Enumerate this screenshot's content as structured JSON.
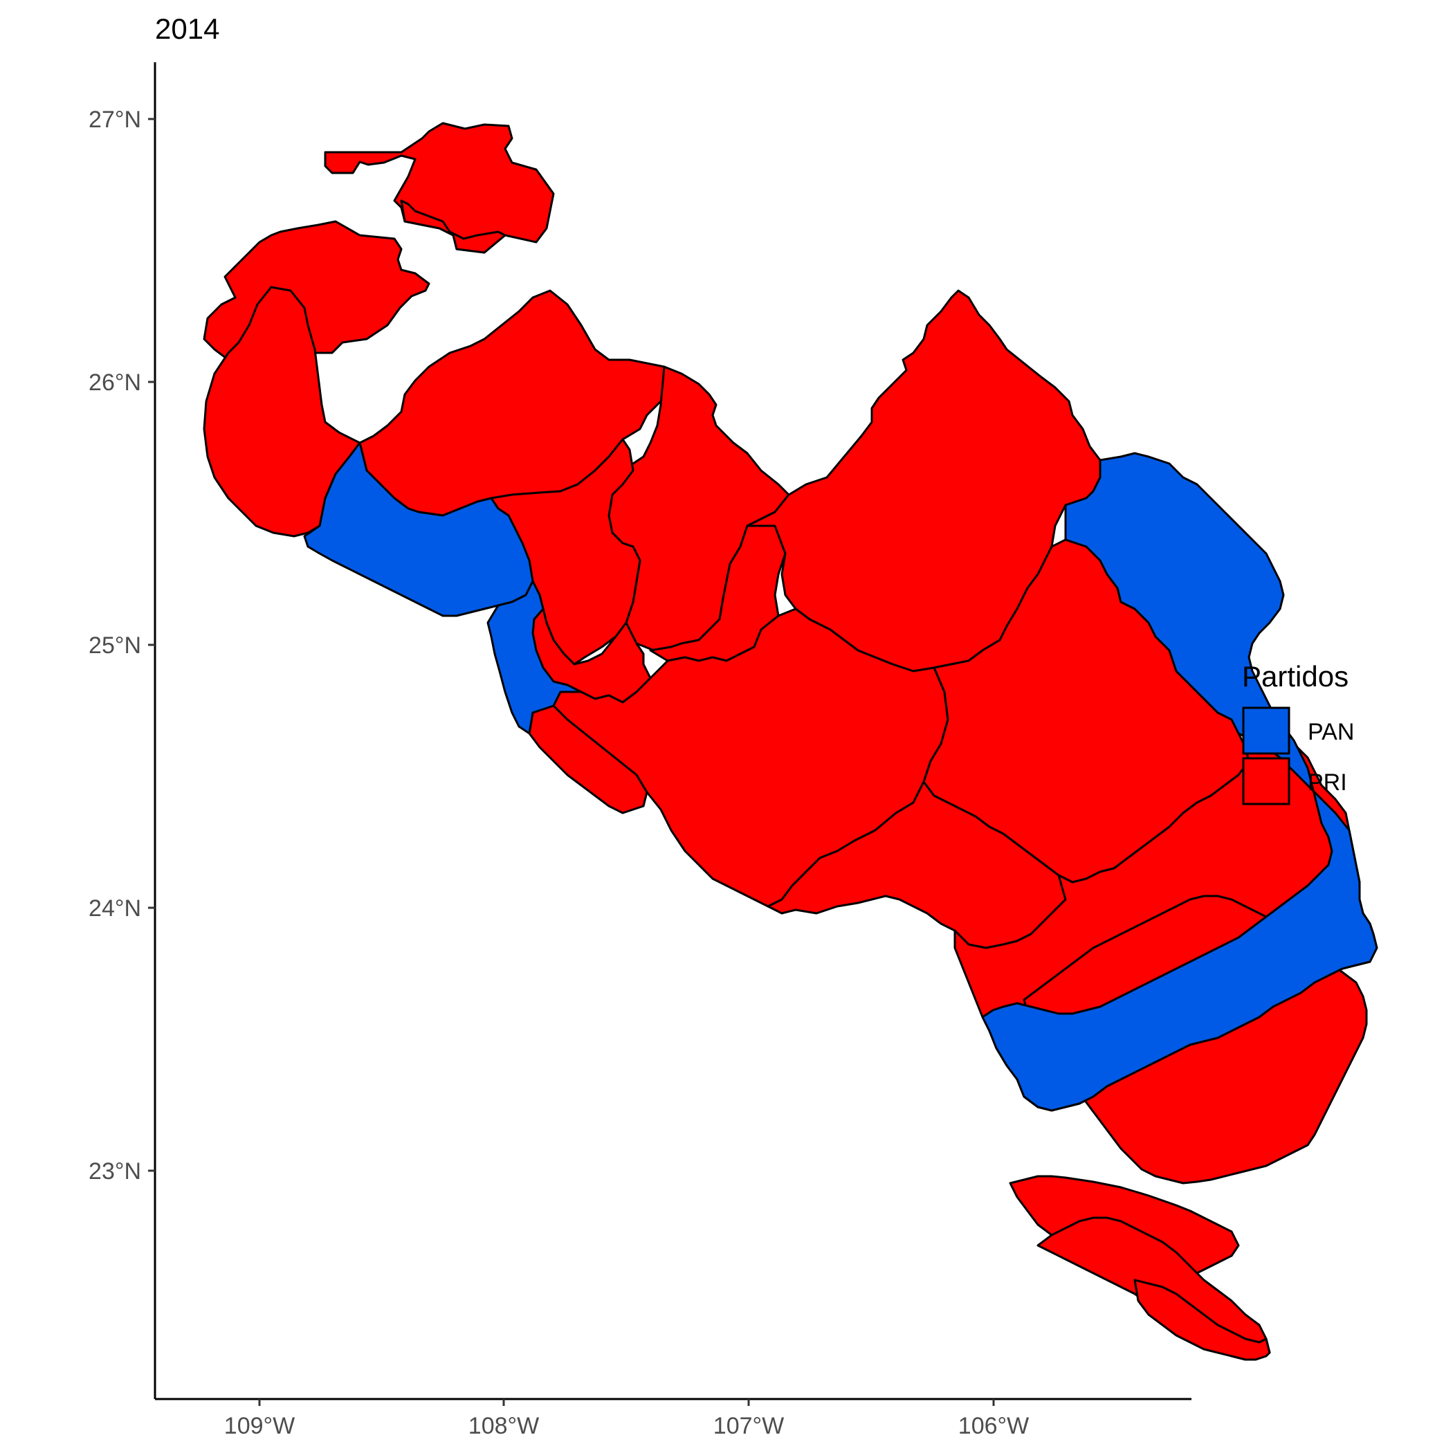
{
  "title": "2014",
  "axes": {
    "x_ticks": [
      "109°W",
      "108°W",
      "107°W",
      "106°W"
    ],
    "y_ticks": [
      "27°N",
      "26°N",
      "25°N",
      "24°N",
      "23°N"
    ]
  },
  "legend": {
    "title": "Partidos",
    "placement": "right",
    "items": [
      {
        "label": "PAN",
        "color": "#005AE6"
      },
      {
        "label": "PRI",
        "color": "#FF0000"
      }
    ]
  },
  "regions": [
    {
      "party": "PRI"
    },
    {
      "party": "PRI"
    },
    {
      "party": "PRI"
    },
    {
      "party": "PRI"
    },
    {
      "party": "PRI"
    },
    {
      "party": "PRI"
    },
    {
      "party": "PRI"
    },
    {
      "party": "PRI"
    },
    {
      "party": "PRI"
    },
    {
      "party": "PRI"
    },
    {
      "party": "PRI"
    },
    {
      "party": "PRI"
    },
    {
      "party": "PRI"
    },
    {
      "party": "PRI"
    },
    {
      "party": "PRI"
    },
    {
      "party": "PRI"
    },
    {
      "party": "PRI"
    },
    {
      "party": "PRI"
    },
    {
      "party": "PRI"
    },
    {
      "party": "PAN"
    },
    {
      "party": "PAN"
    },
    {
      "party": "PAN"
    }
  ]
}
